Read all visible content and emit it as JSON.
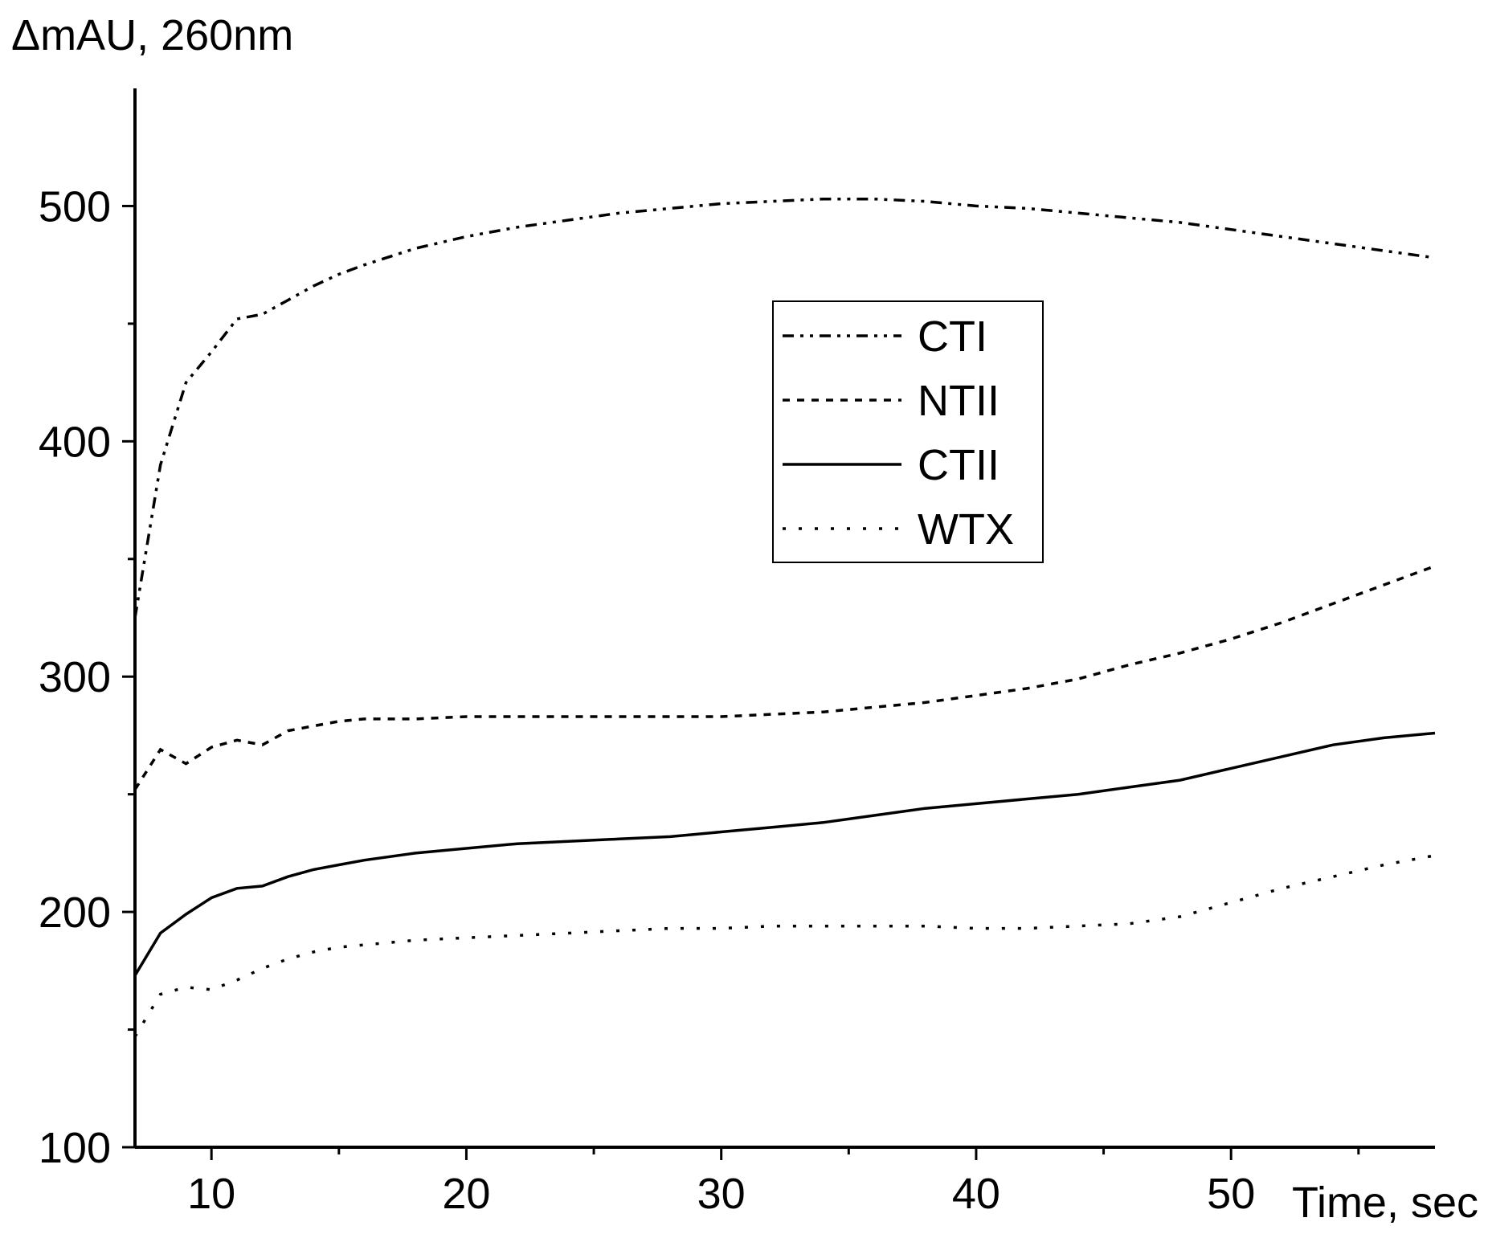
{
  "chart_data": {
    "type": "line",
    "title": "",
    "ylabel": "ΔmAU, 260nm",
    "xlabel": "Time, sec",
    "xlim": [
      7,
      58
    ],
    "ylim": [
      100,
      550
    ],
    "x_ticks": [
      10,
      20,
      30,
      40,
      50
    ],
    "x_tick_labels": [
      "10",
      "20",
      "30",
      "40",
      "50"
    ],
    "y_ticks": [
      100,
      200,
      300,
      400,
      500
    ],
    "y_tick_labels": [
      "100",
      "200",
      "300",
      "400",
      "500"
    ],
    "grid": false,
    "legend_position": "center-right",
    "series": [
      {
        "name": "CTI",
        "style": "dash-dot-dot",
        "x": [
          7,
          8,
          9,
          10,
          11,
          12,
          13,
          14,
          15,
          16,
          18,
          20,
          22,
          24,
          26,
          28,
          30,
          32,
          34,
          36,
          38,
          40,
          42,
          44,
          46,
          48,
          50,
          52,
          54,
          56,
          58
        ],
        "values": [
          325,
          390,
          425,
          438,
          452,
          454,
          460,
          466,
          471,
          475,
          482,
          487,
          491,
          494,
          497,
          499,
          501,
          502,
          503,
          503,
          502,
          500,
          499,
          497,
          495,
          493,
          490,
          487,
          484,
          481,
          478
        ]
      },
      {
        "name": "NTII",
        "style": "dashed",
        "x": [
          7,
          8,
          9,
          10,
          11,
          12,
          13,
          14,
          15,
          16,
          18,
          20,
          22,
          24,
          26,
          28,
          30,
          32,
          34,
          36,
          38,
          40,
          42,
          44,
          46,
          48,
          50,
          52,
          54,
          56,
          58
        ],
        "values": [
          252,
          269,
          263,
          270,
          273,
          271,
          277,
          279,
          281,
          282,
          282,
          283,
          283,
          283,
          283,
          283,
          283,
          284,
          285,
          287,
          289,
          292,
          295,
          299,
          305,
          310,
          316,
          323,
          331,
          339,
          347
        ]
      },
      {
        "name": "CTII",
        "style": "solid",
        "x": [
          7,
          8,
          9,
          10,
          11,
          12,
          13,
          14,
          15,
          16,
          18,
          20,
          22,
          24,
          26,
          28,
          30,
          32,
          34,
          36,
          38,
          40,
          42,
          44,
          46,
          48,
          50,
          52,
          54,
          56,
          58
        ],
        "values": [
          173,
          191,
          199,
          206,
          210,
          211,
          215,
          218,
          220,
          222,
          225,
          227,
          229,
          230,
          231,
          232,
          234,
          236,
          238,
          241,
          244,
          246,
          248,
          250,
          253,
          256,
          261,
          266,
          271,
          274,
          276
        ]
      },
      {
        "name": "WTX",
        "style": "dotted",
        "x": [
          7,
          8,
          9,
          10,
          11,
          12,
          13,
          14,
          15,
          16,
          18,
          20,
          22,
          24,
          26,
          28,
          30,
          32,
          34,
          36,
          38,
          40,
          42,
          44,
          46,
          48,
          50,
          52,
          54,
          56,
          58
        ],
        "values": [
          147,
          165,
          168,
          167,
          171,
          176,
          180,
          183,
          185,
          186,
          188,
          189,
          190,
          191,
          192,
          193,
          193,
          194,
          194,
          194,
          194,
          193,
          193,
          194,
          195,
          198,
          204,
          210,
          215,
          220,
          224
        ]
      }
    ]
  }
}
